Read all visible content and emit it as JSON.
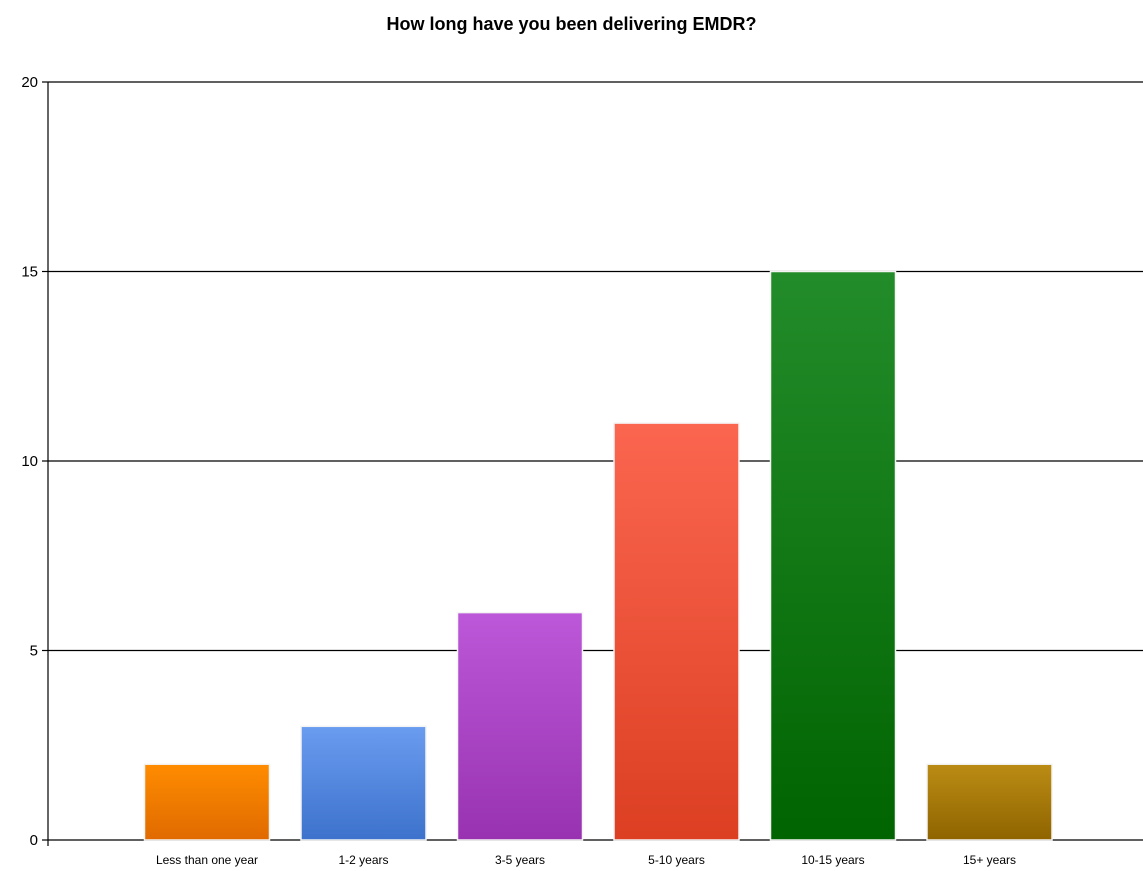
{
  "chart_data": {
    "type": "bar",
    "title": "How long have you been delivering EMDR?",
    "xlabel": "",
    "ylabel": "",
    "categories": [
      "Less than one year",
      "1-2 years",
      "3-5 years",
      "5-10 years",
      "10-15 years",
      "15+ years"
    ],
    "values": [
      2,
      3,
      6,
      11,
      15,
      2
    ],
    "ylim": [
      0,
      20
    ],
    "yticks": [
      "0",
      "5",
      "10",
      "15",
      "20"
    ],
    "grid": true,
    "legend": "none",
    "colors": [
      [
        "#ff8c00",
        "#e06a00"
      ],
      [
        "#6a9cf0",
        "#3d72cc"
      ],
      [
        "#bc58d9",
        "#9832b0"
      ],
      [
        "#fb6650",
        "#dc3f22"
      ],
      [
        "#238c2a",
        "#006400"
      ],
      [
        "#bb8c14",
        "#8f6400"
      ]
    ]
  }
}
